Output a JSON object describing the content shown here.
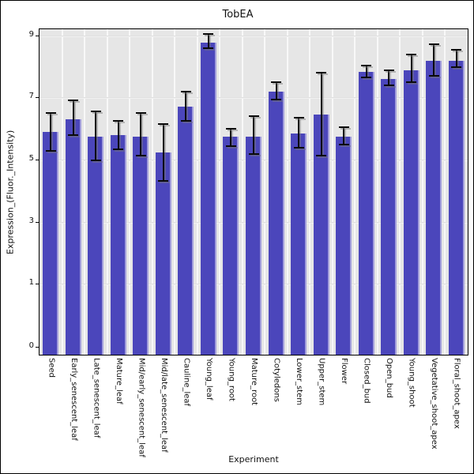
{
  "chart_data": {
    "type": "bar",
    "title": "TobEA",
    "xlabel": "Experiment",
    "ylabel": "Expression_(Fluor._Intensity)",
    "categories": [
      "Seed",
      "Early_senescent_leaf",
      "Late_senescent_leaf",
      "Mature_leaf",
      "Mid/early_senescent_leaf",
      "Mid/late_senescent_leaf",
      "Cauline_leaf",
      "Young_leaf",
      "Young_root",
      "Mature_root",
      "Cotyledons",
      "Lower_stem",
      "Upper_stem",
      "Flower",
      "Closed_bud",
      "Open_bud",
      "Young_shoot",
      "Vegetative_shoot_apex",
      "Floral_shoot_apex"
    ],
    "values": [
      5.9,
      6.3,
      5.75,
      5.8,
      5.75,
      5.25,
      6.7,
      8.8,
      5.75,
      5.75,
      7.2,
      5.85,
      6.45,
      5.75,
      7.85,
      7.6,
      7.9,
      8.2,
      8.2
    ],
    "error_low": [
      5.3,
      5.8,
      5.0,
      5.35,
      5.15,
      4.35,
      6.25,
      8.6,
      5.45,
      5.2,
      6.95,
      5.4,
      5.15,
      5.5,
      7.65,
      7.4,
      7.5,
      7.7,
      8.0
    ],
    "error_high": [
      6.5,
      6.9,
      6.55,
      6.25,
      6.5,
      6.15,
      7.2,
      9.1,
      6.0,
      6.4,
      7.5,
      6.35,
      7.8,
      6.05,
      8.05,
      7.9,
      8.4,
      8.75,
      8.55
    ],
    "yticks": [
      9,
      7,
      5,
      3,
      1,
      0
    ],
    "ylim": [
      0,
      9.3
    ],
    "grid": "on",
    "legend": "none",
    "bar_color": "#4b46bb",
    "bar_edge_color": "#a39fdc",
    "plot_background_color": "#e6e6e6",
    "error_bar_color": "#0a0a0a"
  }
}
